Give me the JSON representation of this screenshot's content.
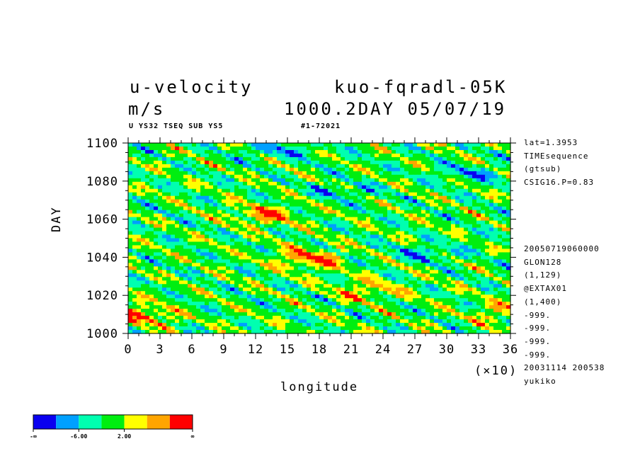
{
  "header": {
    "variable": "u-velocity",
    "experiment": "kuo-fqradl-05K",
    "units": "m/s",
    "time_label": "1000.2DAY 05/07/19",
    "subtitle_left": "U YS32 TSEQ SUB YS5",
    "subtitle_mid": "#1-72021"
  },
  "info_right_top": [
    "lat=1.3953",
    "TIMEsequence",
    "(gtsub)",
    "CSIG16.P=0.83"
  ],
  "info_right_bottom": [
    "20050719060000",
    "GLON128",
    "(1,129)",
    "@EXTAX01",
    "(1,400)",
    "-999.",
    "-999.",
    "-999.",
    "-999.",
    "20031114 200538",
    "yukiko"
  ],
  "chart_data": {
    "type": "heatmap",
    "xlabel": "longitude",
    "x_multiplier": "(×10)",
    "ylabel": "DAY",
    "x_ticks": [
      "0",
      "3",
      "6",
      "9",
      "12",
      "15",
      "18",
      "21",
      "24",
      "27",
      "30",
      "33",
      "36"
    ],
    "y_ticks": [
      "1000",
      "1020",
      "1040",
      "1060",
      "1080",
      "1100"
    ],
    "xlim": [
      0,
      36
    ],
    "ylim": [
      1000,
      1100
    ],
    "colorbar": {
      "colors": [
        "#0a00f0",
        "#00a0ff",
        "#00ffb0",
        "#00ee10",
        "#ffff00",
        "#ffa500",
        "#ff0000"
      ],
      "labels": [
        "-∞",
        "-6.00",
        "2.00",
        "∞"
      ]
    }
  }
}
